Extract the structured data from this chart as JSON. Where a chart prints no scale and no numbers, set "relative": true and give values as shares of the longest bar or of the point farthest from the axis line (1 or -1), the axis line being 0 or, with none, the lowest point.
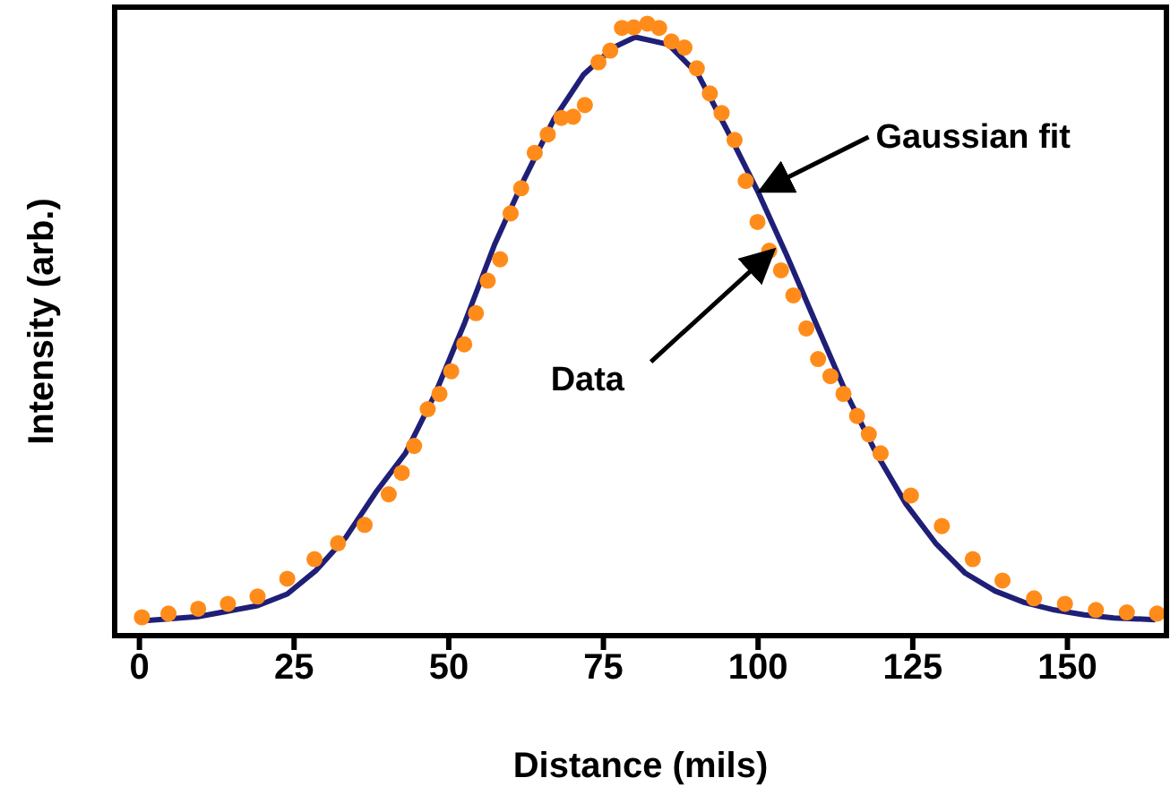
{
  "chart_data": {
    "type": "scatter",
    "relative": true,
    "xlabel": "Distance (mils)",
    "ylabel": "Intensity (arb.)",
    "xlim": [
      -4,
      166
    ],
    "xticks": [
      0,
      25,
      50,
      75,
      100,
      125,
      150
    ],
    "series": [
      {
        "type": "scatter",
        "marker": "circle",
        "color": "#ff8c1a",
        "x": [
          0.4,
          4.7,
          9.5,
          14.3,
          19.1,
          23.9,
          28.3,
          32.1,
          36.4,
          40.3,
          42.4,
          44.4,
          46.6,
          48.5,
          50.4,
          52.5,
          54.4,
          56.3,
          58.3,
          60,
          61.7,
          63.9,
          66,
          68.2,
          70.1,
          72,
          74.2,
          76.1,
          78,
          79.9,
          82.1,
          84,
          86,
          88.1,
          90.1,
          92.2,
          94.1,
          96.2,
          98,
          99.9,
          101.8,
          103.7,
          105.7,
          107.8,
          109.7,
          111.7,
          113.8,
          116,
          117.9,
          119.8,
          124.7,
          129.7,
          134.7,
          139.5,
          144.6,
          149.6,
          154.6,
          159.6,
          164.5
        ],
        "values": [
          0.03,
          0.036,
          0.044,
          0.052,
          0.064,
          0.093,
          0.125,
          0.151,
          0.181,
          0.231,
          0.266,
          0.31,
          0.37,
          0.395,
          0.432,
          0.476,
          0.527,
          0.58,
          0.615,
          0.69,
          0.731,
          0.789,
          0.819,
          0.846,
          0.848,
          0.867,
          0.937,
          0.956,
          0.993,
          0.994,
          1.0,
          0.993,
          0.971,
          0.961,
          0.927,
          0.886,
          0.854,
          0.81,
          0.743,
          0.676,
          0.629,
          0.597,
          0.556,
          0.502,
          0.452,
          0.424,
          0.395,
          0.359,
          0.329,
          0.298,
          0.229,
          0.179,
          0.125,
          0.09,
          0.061,
          0.052,
          0.042,
          0.038,
          0.036
        ]
      },
      {
        "type": "line",
        "marker": "none",
        "line_style": "solid",
        "color": "#1f1f78",
        "x": [
          0.4,
          9.5,
          19.1,
          23.9,
          28.6,
          33.4,
          38.2,
          43,
          47.8,
          52.6,
          57.4,
          62.2,
          67,
          71.8,
          76.6,
          79.5,
          80.2,
          85.5,
          90.3,
          95.1,
          99.9,
          104.7,
          109.5,
          114.3,
          119.1,
          123.9,
          128.7,
          133.5,
          138.3,
          143.1,
          147.9,
          152.7,
          157.5,
          164.2
        ],
        "values": [
          0.024,
          0.031,
          0.049,
          0.068,
          0.107,
          0.161,
          0.234,
          0.298,
          0.395,
          0.512,
          0.639,
          0.746,
          0.844,
          0.917,
          0.961,
          0.975,
          0.978,
          0.966,
          0.917,
          0.824,
          0.727,
          0.62,
          0.507,
          0.395,
          0.298,
          0.215,
          0.151,
          0.102,
          0.073,
          0.054,
          0.042,
          0.034,
          0.029,
          0.026
        ]
      }
    ],
    "annotations": [
      {
        "text": "Gaussian fit",
        "x": 99.9,
        "y": 0.727
      },
      {
        "text": "Data",
        "x": 101.8,
        "y": 0.629
      }
    ]
  }
}
